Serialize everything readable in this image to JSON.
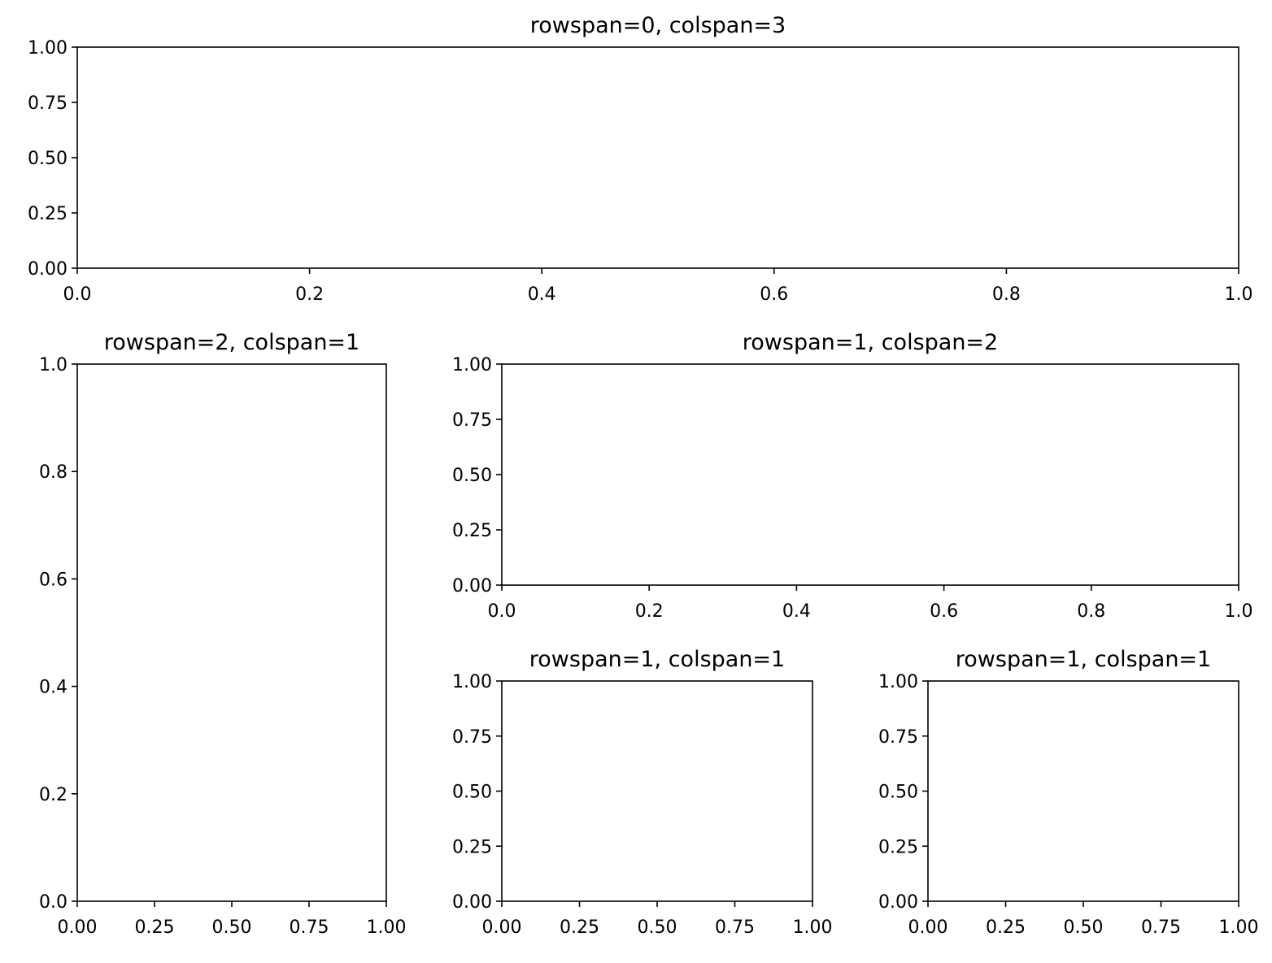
{
  "chart_data": [
    {
      "type": "line",
      "title": "rowspan=0, colspan=3",
      "xlim": [
        0,
        1
      ],
      "ylim": [
        0,
        1
      ],
      "xticks": [
        {
          "value": 0,
          "label": "0.0"
        },
        0.2,
        0.4,
        0.6,
        0.8,
        {
          "value": 1,
          "label": "1.0"
        }
      ],
      "yticks": [
        {
          "value": 0,
          "label": "0.00"
        },
        0.25,
        {
          "value": 0.5,
          "label": "0.50"
        },
        0.75,
        {
          "value": 1,
          "label": "1.00"
        }
      ]
    },
    {
      "type": "line",
      "title": "rowspan=2, colspan=1",
      "xlim": [
        0,
        1
      ],
      "ylim": [
        0,
        1
      ],
      "xticks": [
        {
          "value": 0,
          "label": "0.00"
        },
        0.25,
        {
          "value": 0.5,
          "label": "0.50"
        },
        0.75,
        {
          "value": 1,
          "label": "1.00"
        }
      ],
      "yticks": [
        {
          "value": 0,
          "label": "0.0"
        },
        0.2,
        0.4,
        0.6,
        0.8,
        {
          "value": 1,
          "label": "1.0"
        }
      ]
    },
    {
      "type": "line",
      "title": "rowspan=1, colspan=2",
      "xlim": [
        0,
        1
      ],
      "ylim": [
        0,
        1
      ],
      "xticks": [
        {
          "value": 0,
          "label": "0.0"
        },
        0.2,
        0.4,
        0.6,
        0.8,
        {
          "value": 1,
          "label": "1.0"
        }
      ],
      "yticks": [
        {
          "value": 0,
          "label": "0.00"
        },
        0.25,
        {
          "value": 0.5,
          "label": "0.50"
        },
        0.75,
        {
          "value": 1,
          "label": "1.00"
        }
      ]
    },
    {
      "type": "line",
      "title": "rowspan=1, colspan=1",
      "xlim": [
        0,
        1
      ],
      "ylim": [
        0,
        1
      ],
      "xticks": [
        {
          "value": 0,
          "label": "0.00"
        },
        0.25,
        {
          "value": 0.5,
          "label": "0.50"
        },
        0.75,
        {
          "value": 1,
          "label": "1.00"
        }
      ],
      "yticks": [
        {
          "value": 0,
          "label": "0.00"
        },
        0.25,
        {
          "value": 0.5,
          "label": "0.50"
        },
        0.75,
        {
          "value": 1,
          "label": "1.00"
        }
      ]
    },
    {
      "type": "line",
      "title": "rowspan=1, colspan=1",
      "xlim": [
        0,
        1
      ],
      "ylim": [
        0,
        1
      ],
      "xticks": [
        {
          "value": 0,
          "label": "0.00"
        },
        0.25,
        {
          "value": 0.5,
          "label": "0.50"
        },
        0.75,
        {
          "value": 1,
          "label": "1.00"
        }
      ],
      "yticks": [
        {
          "value": 0,
          "label": "0.00"
        },
        0.25,
        {
          "value": 0.5,
          "label": "0.50"
        },
        0.75,
        {
          "value": 1,
          "label": "1.00"
        }
      ]
    }
  ]
}
